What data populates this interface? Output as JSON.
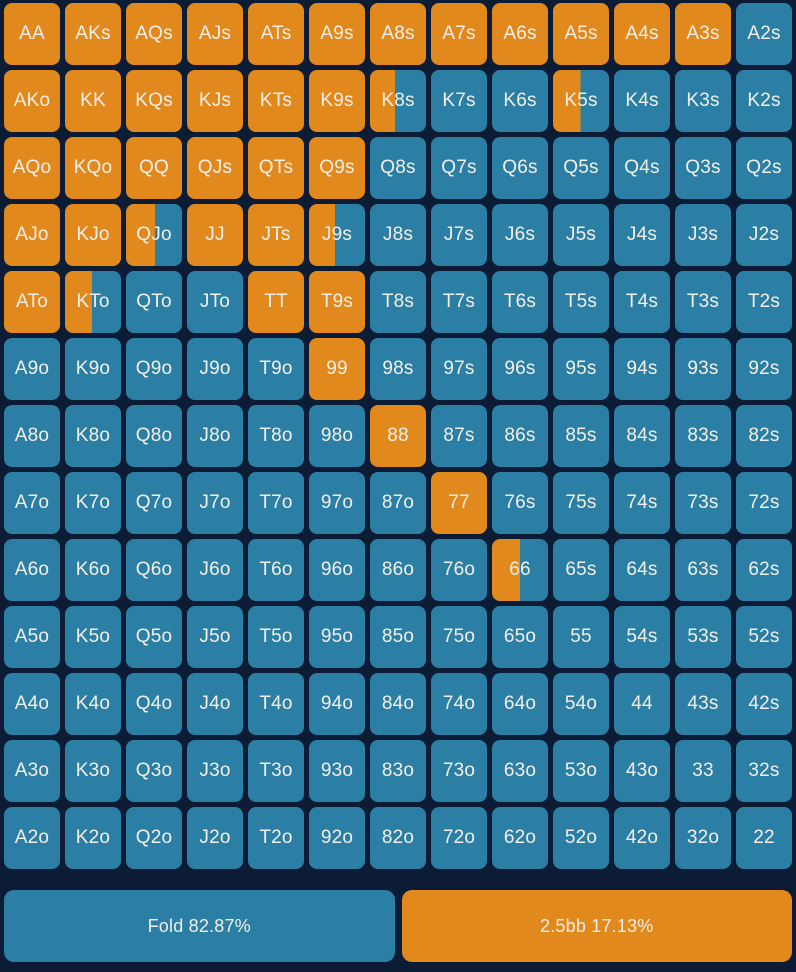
{
  "colors": {
    "raise": "#E2891E",
    "fold": "#2C7FA4",
    "background": "#0B1C34",
    "text": "#F2EFE8"
  },
  "actions": [
    {
      "id": "fold",
      "label": "Fold 82.87%",
      "type": "fold",
      "frequency_pct": 82.87
    },
    {
      "id": "raise-2.5bb",
      "label": "2.5bb 17.13%",
      "type": "raise",
      "frequency_pct": 17.13
    }
  ],
  "grid": {
    "rows": [
      {
        "cells": [
          {
            "hand": "AA",
            "raise_pct": 100
          },
          {
            "hand": "AKs",
            "raise_pct": 100
          },
          {
            "hand": "AQs",
            "raise_pct": 100
          },
          {
            "hand": "AJs",
            "raise_pct": 100
          },
          {
            "hand": "ATs",
            "raise_pct": 100
          },
          {
            "hand": "A9s",
            "raise_pct": 100
          },
          {
            "hand": "A8s",
            "raise_pct": 100
          },
          {
            "hand": "A7s",
            "raise_pct": 100
          },
          {
            "hand": "A6s",
            "raise_pct": 100
          },
          {
            "hand": "A5s",
            "raise_pct": 100
          },
          {
            "hand": "A4s",
            "raise_pct": 100
          },
          {
            "hand": "A3s",
            "raise_pct": 100
          },
          {
            "hand": "A2s",
            "raise_pct": 0
          }
        ]
      },
      {
        "cells": [
          {
            "hand": "AKo",
            "raise_pct": 100
          },
          {
            "hand": "KK",
            "raise_pct": 100
          },
          {
            "hand": "KQs",
            "raise_pct": 100
          },
          {
            "hand": "KJs",
            "raise_pct": 100
          },
          {
            "hand": "KTs",
            "raise_pct": 100
          },
          {
            "hand": "K9s",
            "raise_pct": 100
          },
          {
            "hand": "K8s",
            "raise_pct": 45
          },
          {
            "hand": "K7s",
            "raise_pct": 0
          },
          {
            "hand": "K6s",
            "raise_pct": 0
          },
          {
            "hand": "K5s",
            "raise_pct": 49
          },
          {
            "hand": "K4s",
            "raise_pct": 0
          },
          {
            "hand": "K3s",
            "raise_pct": 0
          },
          {
            "hand": "K2s",
            "raise_pct": 0
          }
        ]
      },
      {
        "cells": [
          {
            "hand": "AQo",
            "raise_pct": 100
          },
          {
            "hand": "KQo",
            "raise_pct": 100
          },
          {
            "hand": "QQ",
            "raise_pct": 100
          },
          {
            "hand": "QJs",
            "raise_pct": 100
          },
          {
            "hand": "QTs",
            "raise_pct": 100
          },
          {
            "hand": "Q9s",
            "raise_pct": 100
          },
          {
            "hand": "Q8s",
            "raise_pct": 0
          },
          {
            "hand": "Q7s",
            "raise_pct": 0
          },
          {
            "hand": "Q6s",
            "raise_pct": 0
          },
          {
            "hand": "Q5s",
            "raise_pct": 0
          },
          {
            "hand": "Q4s",
            "raise_pct": 0
          },
          {
            "hand": "Q3s",
            "raise_pct": 0
          },
          {
            "hand": "Q2s",
            "raise_pct": 0
          }
        ]
      },
      {
        "cells": [
          {
            "hand": "AJo",
            "raise_pct": 100
          },
          {
            "hand": "KJo",
            "raise_pct": 100
          },
          {
            "hand": "QJo",
            "raise_pct": 52
          },
          {
            "hand": "JJ",
            "raise_pct": 100
          },
          {
            "hand": "JTs",
            "raise_pct": 100
          },
          {
            "hand": "J9s",
            "raise_pct": 46
          },
          {
            "hand": "J8s",
            "raise_pct": 0
          },
          {
            "hand": "J7s",
            "raise_pct": 0
          },
          {
            "hand": "J6s",
            "raise_pct": 0
          },
          {
            "hand": "J5s",
            "raise_pct": 0
          },
          {
            "hand": "J4s",
            "raise_pct": 0
          },
          {
            "hand": "J3s",
            "raise_pct": 0
          },
          {
            "hand": "J2s",
            "raise_pct": 0
          }
        ]
      },
      {
        "cells": [
          {
            "hand": "ATo",
            "raise_pct": 100
          },
          {
            "hand": "KTo",
            "raise_pct": 48
          },
          {
            "hand": "QTo",
            "raise_pct": 0
          },
          {
            "hand": "JTo",
            "raise_pct": 0
          },
          {
            "hand": "TT",
            "raise_pct": 100
          },
          {
            "hand": "T9s",
            "raise_pct": 100
          },
          {
            "hand": "T8s",
            "raise_pct": 0
          },
          {
            "hand": "T7s",
            "raise_pct": 0
          },
          {
            "hand": "T6s",
            "raise_pct": 0
          },
          {
            "hand": "T5s",
            "raise_pct": 0
          },
          {
            "hand": "T4s",
            "raise_pct": 0
          },
          {
            "hand": "T3s",
            "raise_pct": 0
          },
          {
            "hand": "T2s",
            "raise_pct": 0
          }
        ]
      },
      {
        "cells": [
          {
            "hand": "A9o",
            "raise_pct": 0
          },
          {
            "hand": "K9o",
            "raise_pct": 0
          },
          {
            "hand": "Q9o",
            "raise_pct": 0
          },
          {
            "hand": "J9o",
            "raise_pct": 0
          },
          {
            "hand": "T9o",
            "raise_pct": 0
          },
          {
            "hand": "99",
            "raise_pct": 100
          },
          {
            "hand": "98s",
            "raise_pct": 0
          },
          {
            "hand": "97s",
            "raise_pct": 0
          },
          {
            "hand": "96s",
            "raise_pct": 0
          },
          {
            "hand": "95s",
            "raise_pct": 0
          },
          {
            "hand": "94s",
            "raise_pct": 0
          },
          {
            "hand": "93s",
            "raise_pct": 0
          },
          {
            "hand": "92s",
            "raise_pct": 0
          }
        ]
      },
      {
        "cells": [
          {
            "hand": "A8o",
            "raise_pct": 0
          },
          {
            "hand": "K8o",
            "raise_pct": 0
          },
          {
            "hand": "Q8o",
            "raise_pct": 0
          },
          {
            "hand": "J8o",
            "raise_pct": 0
          },
          {
            "hand": "T8o",
            "raise_pct": 0
          },
          {
            "hand": "98o",
            "raise_pct": 0
          },
          {
            "hand": "88",
            "raise_pct": 100
          },
          {
            "hand": "87s",
            "raise_pct": 0
          },
          {
            "hand": "86s",
            "raise_pct": 0
          },
          {
            "hand": "85s",
            "raise_pct": 0
          },
          {
            "hand": "84s",
            "raise_pct": 0
          },
          {
            "hand": "83s",
            "raise_pct": 0
          },
          {
            "hand": "82s",
            "raise_pct": 0
          }
        ]
      },
      {
        "cells": [
          {
            "hand": "A7o",
            "raise_pct": 0
          },
          {
            "hand": "K7o",
            "raise_pct": 0
          },
          {
            "hand": "Q7o",
            "raise_pct": 0
          },
          {
            "hand": "J7o",
            "raise_pct": 0
          },
          {
            "hand": "T7o",
            "raise_pct": 0
          },
          {
            "hand": "97o",
            "raise_pct": 0
          },
          {
            "hand": "87o",
            "raise_pct": 0
          },
          {
            "hand": "77",
            "raise_pct": 100
          },
          {
            "hand": "76s",
            "raise_pct": 0
          },
          {
            "hand": "75s",
            "raise_pct": 0
          },
          {
            "hand": "74s",
            "raise_pct": 0
          },
          {
            "hand": "73s",
            "raise_pct": 0
          },
          {
            "hand": "72s",
            "raise_pct": 0
          }
        ]
      },
      {
        "cells": [
          {
            "hand": "A6o",
            "raise_pct": 0
          },
          {
            "hand": "K6o",
            "raise_pct": 0
          },
          {
            "hand": "Q6o",
            "raise_pct": 0
          },
          {
            "hand": "J6o",
            "raise_pct": 0
          },
          {
            "hand": "T6o",
            "raise_pct": 0
          },
          {
            "hand": "96o",
            "raise_pct": 0
          },
          {
            "hand": "86o",
            "raise_pct": 0
          },
          {
            "hand": "76o",
            "raise_pct": 0
          },
          {
            "hand": "66",
            "raise_pct": 50
          },
          {
            "hand": "65s",
            "raise_pct": 0
          },
          {
            "hand": "64s",
            "raise_pct": 0
          },
          {
            "hand": "63s",
            "raise_pct": 0
          },
          {
            "hand": "62s",
            "raise_pct": 0
          }
        ]
      },
      {
        "cells": [
          {
            "hand": "A5o",
            "raise_pct": 0
          },
          {
            "hand": "K5o",
            "raise_pct": 0
          },
          {
            "hand": "Q5o",
            "raise_pct": 0
          },
          {
            "hand": "J5o",
            "raise_pct": 0
          },
          {
            "hand": "T5o",
            "raise_pct": 0
          },
          {
            "hand": "95o",
            "raise_pct": 0
          },
          {
            "hand": "85o",
            "raise_pct": 0
          },
          {
            "hand": "75o",
            "raise_pct": 0
          },
          {
            "hand": "65o",
            "raise_pct": 0
          },
          {
            "hand": "55",
            "raise_pct": 0
          },
          {
            "hand": "54s",
            "raise_pct": 0
          },
          {
            "hand": "53s",
            "raise_pct": 0
          },
          {
            "hand": "52s",
            "raise_pct": 0
          }
        ]
      },
      {
        "cells": [
          {
            "hand": "A4o",
            "raise_pct": 0
          },
          {
            "hand": "K4o",
            "raise_pct": 0
          },
          {
            "hand": "Q4o",
            "raise_pct": 0
          },
          {
            "hand": "J4o",
            "raise_pct": 0
          },
          {
            "hand": "T4o",
            "raise_pct": 0
          },
          {
            "hand": "94o",
            "raise_pct": 0
          },
          {
            "hand": "84o",
            "raise_pct": 0
          },
          {
            "hand": "74o",
            "raise_pct": 0
          },
          {
            "hand": "64o",
            "raise_pct": 0
          },
          {
            "hand": "54o",
            "raise_pct": 0
          },
          {
            "hand": "44",
            "raise_pct": 0
          },
          {
            "hand": "43s",
            "raise_pct": 0
          },
          {
            "hand": "42s",
            "raise_pct": 0
          }
        ]
      },
      {
        "cells": [
          {
            "hand": "A3o",
            "raise_pct": 0
          },
          {
            "hand": "K3o",
            "raise_pct": 0
          },
          {
            "hand": "Q3o",
            "raise_pct": 0
          },
          {
            "hand": "J3o",
            "raise_pct": 0
          },
          {
            "hand": "T3o",
            "raise_pct": 0
          },
          {
            "hand": "93o",
            "raise_pct": 0
          },
          {
            "hand": "83o",
            "raise_pct": 0
          },
          {
            "hand": "73o",
            "raise_pct": 0
          },
          {
            "hand": "63o",
            "raise_pct": 0
          },
          {
            "hand": "53o",
            "raise_pct": 0
          },
          {
            "hand": "43o",
            "raise_pct": 0
          },
          {
            "hand": "33",
            "raise_pct": 0
          },
          {
            "hand": "32s",
            "raise_pct": 0
          }
        ]
      },
      {
        "cells": [
          {
            "hand": "A2o",
            "raise_pct": 0
          },
          {
            "hand": "K2o",
            "raise_pct": 0
          },
          {
            "hand": "Q2o",
            "raise_pct": 0
          },
          {
            "hand": "J2o",
            "raise_pct": 0
          },
          {
            "hand": "T2o",
            "raise_pct": 0
          },
          {
            "hand": "92o",
            "raise_pct": 0
          },
          {
            "hand": "82o",
            "raise_pct": 0
          },
          {
            "hand": "72o",
            "raise_pct": 0
          },
          {
            "hand": "62o",
            "raise_pct": 0
          },
          {
            "hand": "52o",
            "raise_pct": 0
          },
          {
            "hand": "42o",
            "raise_pct": 0
          },
          {
            "hand": "32o",
            "raise_pct": 0
          },
          {
            "hand": "22",
            "raise_pct": 0
          }
        ]
      }
    ]
  }
}
